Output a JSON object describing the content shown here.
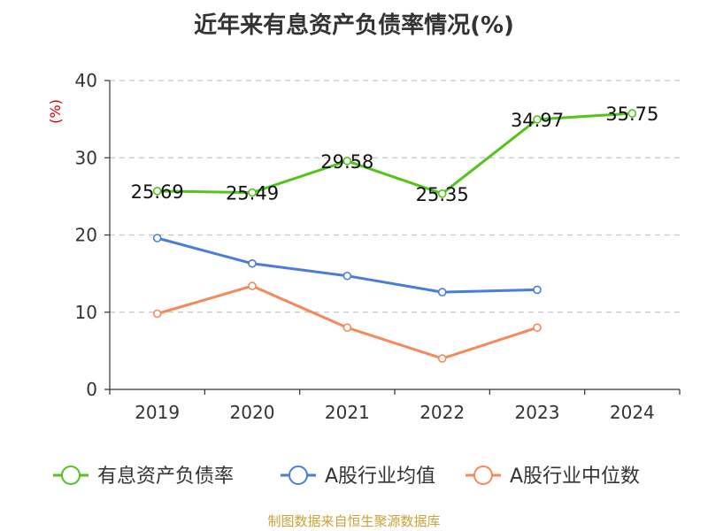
{
  "title": "近年来有息资产负债率情况(%)",
  "unit_label": "(%)",
  "source": "制图数据来自恒生聚源数据库",
  "colors": {
    "series_green": "#52c41a",
    "series_blue": "#4a7dd9",
    "series_orange": "#f5895a",
    "unit_label": "#cc0000",
    "source": "#c9a23a"
  },
  "chart_data": {
    "type": "line",
    "categories": [
      "2019",
      "2020",
      "2021",
      "2022",
      "2023",
      "2024"
    ],
    "ylim": [
      0,
      40
    ],
    "yticks": [
      0,
      10,
      20,
      30,
      40
    ],
    "grid": true,
    "legend_position": "bottom",
    "series": [
      {
        "name": "有息资产负债率",
        "color": "#52c41a",
        "values": [
          25.69,
          25.49,
          29.58,
          25.35,
          34.97,
          35.75
        ],
        "labels": [
          "25.69",
          "25.49",
          "29.58",
          "25.35",
          "34.97",
          "35.75"
        ]
      },
      {
        "name": "A股行业均值",
        "color": "#4a7dd9",
        "values": [
          19.6,
          16.3,
          14.7,
          12.6,
          12.9,
          null
        ]
      },
      {
        "name": "A股行业中位数",
        "color": "#f5895a",
        "values": [
          9.8,
          13.4,
          8.0,
          4.0,
          8.0,
          null
        ]
      }
    ]
  }
}
